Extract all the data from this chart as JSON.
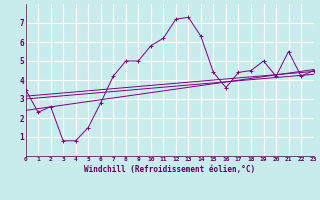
{
  "xlabel": "Windchill (Refroidissement éolien,°C)",
  "background_color": "#c8ecec",
  "grid_color": "#ffffff",
  "line_color": "#800080",
  "xlim": [
    0,
    23
  ],
  "ylim": [
    0,
    8
  ],
  "xticks": [
    0,
    1,
    2,
    3,
    4,
    5,
    6,
    7,
    8,
    9,
    10,
    11,
    12,
    13,
    14,
    15,
    16,
    17,
    18,
    19,
    20,
    21,
    22,
    23
  ],
  "yticks": [
    1,
    2,
    3,
    4,
    5,
    6,
    7
  ],
  "main_line": {
    "x": [
      0,
      1,
      2,
      3,
      4,
      5,
      6,
      7,
      8,
      9,
      10,
      11,
      12,
      13,
      14,
      15,
      16,
      17,
      18,
      19,
      20,
      21,
      22,
      23
    ],
    "y": [
      3.5,
      2.3,
      2.6,
      0.8,
      0.8,
      1.5,
      2.8,
      4.2,
      5.0,
      5.0,
      5.8,
      6.2,
      7.2,
      7.3,
      6.3,
      4.4,
      3.6,
      4.4,
      4.5,
      5.0,
      4.2,
      5.5,
      4.2,
      4.5
    ]
  },
  "reg_lines": [
    {
      "x": [
        0,
        23
      ],
      "y": [
        3.0,
        4.3
      ]
    },
    {
      "x": [
        0,
        23
      ],
      "y": [
        3.15,
        4.45
      ]
    },
    {
      "x": [
        0,
        23
      ],
      "y": [
        2.4,
        4.55
      ]
    }
  ]
}
